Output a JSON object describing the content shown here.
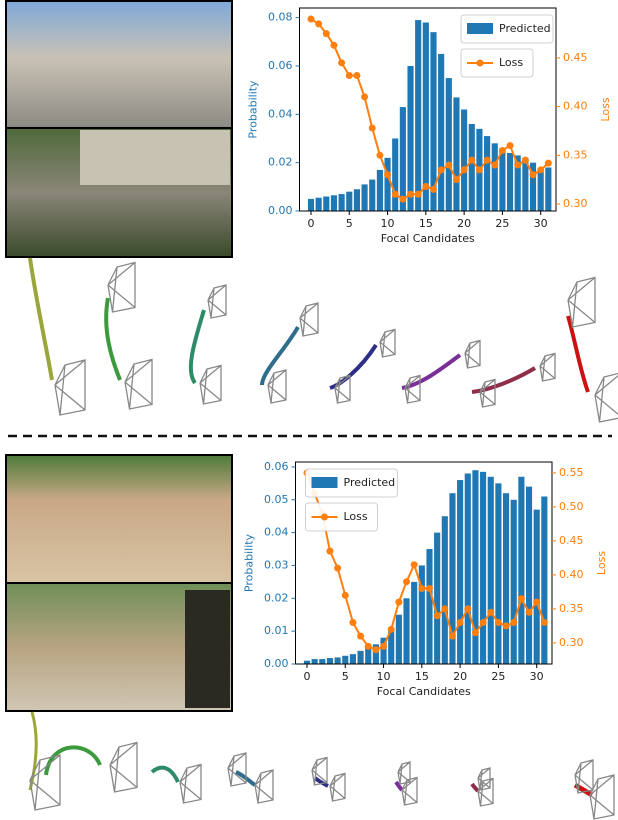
{
  "chart_data": [
    {
      "type": "bar",
      "x": [
        0,
        1,
        2,
        3,
        4,
        5,
        6,
        7,
        8,
        9,
        10,
        11,
        12,
        13,
        14,
        15,
        16,
        17,
        18,
        19,
        20,
        21,
        22,
        23,
        24,
        25,
        26,
        27,
        28,
        29,
        30,
        31
      ],
      "xlabel": "Focal Candidates",
      "ylabel": "Probability",
      "y2label": "Loss",
      "xlim": [
        -1.5,
        32
      ],
      "xticks": [
        0,
        5,
        10,
        15,
        20,
        25,
        30
      ],
      "ylim": [
        0,
        0.084
      ],
      "yticks": [
        {
          "value": 0,
          "label": "0.00"
        },
        {
          "value": 0.02,
          "label": "0.02"
        },
        {
          "value": 0.04,
          "label": "0.04"
        },
        {
          "value": 0.06,
          "label": "0.06"
        },
        {
          "value": 0.08,
          "label": "0.08"
        }
      ],
      "y2lim": [
        0.2928,
        0.5013
      ],
      "y2ticks": [
        {
          "value": 0.3,
          "label": "0.30"
        },
        {
          "value": 0.35,
          "label": "0.35"
        },
        {
          "value": 0.4,
          "label": "0.40"
        },
        {
          "value": 0.45,
          "label": "0.45"
        }
      ],
      "legend": "upper right",
      "series": [
        {
          "name": "Predicted",
          "color": "#1f77b4",
          "values": [
            0.005,
            0.0055,
            0.006,
            0.0065,
            0.007,
            0.008,
            0.009,
            0.011,
            0.013,
            0.017,
            0.022,
            0.03,
            0.043,
            0.06,
            0.079,
            0.078,
            0.074,
            0.065,
            0.055,
            0.047,
            0.042,
            0.036,
            0.034,
            0.031,
            0.028,
            0.026,
            0.024,
            0.023,
            0.022,
            0.02,
            0.017,
            0.018
          ]
        },
        {
          "name": "Loss",
          "color": "#ff7f0e",
          "axis": "y2",
          "values": [
            0.49,
            0.485,
            0.475,
            0.463,
            0.445,
            0.432,
            0.432,
            0.41,
            0.378,
            0.35,
            0.33,
            0.31,
            0.305,
            0.31,
            0.31,
            0.318,
            0.315,
            0.335,
            0.34,
            0.325,
            0.335,
            0.345,
            0.335,
            0.345,
            0.34,
            0.355,
            0.36,
            0.34,
            0.345,
            0.33,
            0.335,
            0.342
          ]
        }
      ]
    },
    {
      "type": "bar",
      "x": [
        0,
        1,
        2,
        3,
        4,
        5,
        6,
        7,
        8,
        9,
        10,
        11,
        12,
        13,
        14,
        15,
        16,
        17,
        18,
        19,
        20,
        21,
        22,
        23,
        24,
        25,
        26,
        27,
        28,
        29,
        30,
        31
      ],
      "xlabel": "Focal Candidates",
      "ylabel": "Probability",
      "y2label": "Loss",
      "xlim": [
        -1.5,
        32
      ],
      "xticks": [
        0,
        5,
        10,
        15,
        20,
        25,
        30
      ],
      "ylim": [
        0,
        0.0615
      ],
      "yticks": [
        {
          "value": 0,
          "label": "0.00"
        },
        {
          "value": 0.01,
          "label": "0.01"
        },
        {
          "value": 0.02,
          "label": "0.02"
        },
        {
          "value": 0.03,
          "label": "0.03"
        },
        {
          "value": 0.04,
          "label": "0.04"
        },
        {
          "value": 0.05,
          "label": "0.05"
        },
        {
          "value": 0.06,
          "label": "0.06"
        }
      ],
      "y2lim": [
        0.269,
        0.566
      ],
      "y2ticks": [
        {
          "value": 0.3,
          "label": "0.30"
        },
        {
          "value": 0.35,
          "label": "0.35"
        },
        {
          "value": 0.4,
          "label": "0.40"
        },
        {
          "value": 0.45,
          "label": "0.45"
        },
        {
          "value": 0.5,
          "label": "0.50"
        },
        {
          "value": 0.55,
          "label": "0.55"
        }
      ],
      "legend": "upper left",
      "series": [
        {
          "name": "Predicted",
          "color": "#1f77b4",
          "values": [
            0.001,
            0.0015,
            0.0015,
            0.0018,
            0.002,
            0.0025,
            0.003,
            0.004,
            0.005,
            0.006,
            0.008,
            0.011,
            0.015,
            0.02,
            0.025,
            0.03,
            0.035,
            0.04,
            0.045,
            0.052,
            0.056,
            0.058,
            0.059,
            0.0585,
            0.057,
            0.055,
            0.052,
            0.05,
            0.057,
            0.054,
            0.047,
            0.051
          ]
        },
        {
          "name": "Loss",
          "color": "#ff7f0e",
          "axis": "y2",
          "values": [
            0.55,
            0.52,
            0.49,
            0.435,
            0.41,
            0.37,
            0.33,
            0.31,
            0.295,
            0.29,
            0.295,
            0.32,
            0.36,
            0.39,
            0.415,
            0.38,
            0.38,
            0.34,
            0.35,
            0.31,
            0.33,
            0.35,
            0.315,
            0.33,
            0.345,
            0.33,
            0.325,
            0.33,
            0.365,
            0.345,
            0.36,
            0.33
          ]
        }
      ]
    }
  ]
}
